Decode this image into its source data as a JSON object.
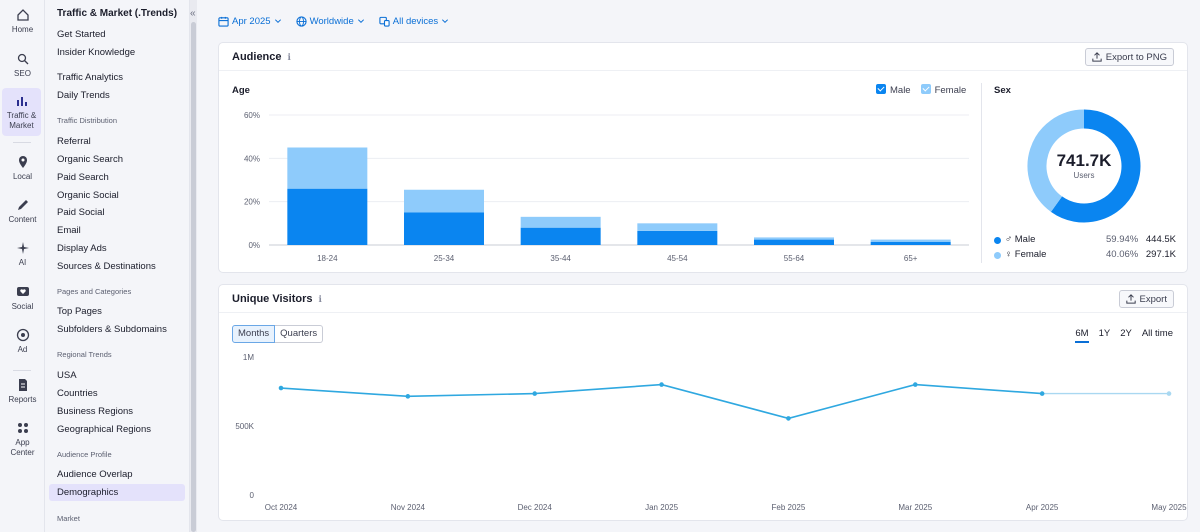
{
  "rail": {
    "items": [
      {
        "label": "Home",
        "icon": "home-icon"
      },
      {
        "label": "SEO",
        "icon": "seo-icon"
      },
      {
        "label": "Traffic &",
        "label2": "Market",
        "icon": "bar-chart-icon"
      },
      {
        "label": "Local",
        "icon": "pin-icon"
      },
      {
        "label": "Content",
        "icon": "pen-icon"
      },
      {
        "label": "AI",
        "icon": "sparkle-icon"
      },
      {
        "label": "Social",
        "icon": "heart-chat-icon"
      },
      {
        "label": "Ad",
        "icon": "target-icon"
      },
      {
        "label": "Reports",
        "icon": "document-icon"
      },
      {
        "label": "App",
        "label2": "Center",
        "icon": "grid-icon"
      }
    ]
  },
  "sidebar": {
    "title": "Traffic & Market (.Trends)",
    "items": [
      {
        "label": "Get Started"
      },
      {
        "label": "Insider Knowledge"
      },
      {
        "label": "Traffic Analytics"
      },
      {
        "label": "Daily Trends"
      },
      {
        "group": "Traffic Distribution"
      },
      {
        "label": "Referral"
      },
      {
        "label": "Organic Search"
      },
      {
        "label": "Paid Search"
      },
      {
        "label": "Organic Social"
      },
      {
        "label": "Paid Social"
      },
      {
        "label": "Email"
      },
      {
        "label": "Display Ads"
      },
      {
        "label": "Sources & Destinations"
      },
      {
        "group": "Pages and Categories"
      },
      {
        "label": "Top Pages"
      },
      {
        "label": "Subfolders & Subdomains"
      },
      {
        "group": "Regional Trends"
      },
      {
        "label": "USA"
      },
      {
        "label": "Countries"
      },
      {
        "label": "Business Regions"
      },
      {
        "label": "Geographical Regions"
      },
      {
        "group": "Audience Profile"
      },
      {
        "label": "Audience Overlap"
      },
      {
        "label": "Demographics",
        "active": true
      },
      {
        "group": "Market"
      }
    ]
  },
  "filters": {
    "date": "Apr 2025",
    "region": "Worldwide",
    "device": "All devices"
  },
  "audience": {
    "title": "Audience",
    "export_label": "Export to PNG",
    "age_title": "Age",
    "legend_male": "Male",
    "legend_female": "Female",
    "sex_title": "Sex",
    "total": "741.7K",
    "total_caption": "Users",
    "male": {
      "label": "Male",
      "pct": "59.94%",
      "count": "444.5K"
    },
    "female": {
      "label": "Female",
      "pct": "40.06%",
      "count": "297.1K"
    }
  },
  "visitors": {
    "title": "Unique Visitors",
    "export_label": "Export",
    "toggle_months": "Months",
    "toggle_quarters": "Quarters",
    "ranges": [
      "6M",
      "1Y",
      "2Y",
      "All time"
    ],
    "selected_range": "6M"
  },
  "colors": {
    "male": "#0a85f0",
    "female": "#8ecbfb",
    "line": "#2fa8e0",
    "accent": "#0a6fd6"
  },
  "chart_data": [
    {
      "type": "bar",
      "stacked": true,
      "categories": [
        "18-24",
        "25-34",
        "35-44",
        "45-54",
        "55-64",
        "65+"
      ],
      "series": [
        {
          "name": "Male",
          "values": [
            26,
            15,
            8,
            6.5,
            2.5,
            1.5
          ]
        },
        {
          "name": "Female",
          "values": [
            19,
            10.5,
            5,
            3.5,
            1,
            1
          ]
        }
      ],
      "yticks": [
        "60%",
        "40%",
        "20%",
        "0%"
      ],
      "ylim": [
        0,
        60
      ],
      "grid": true
    },
    {
      "type": "pie",
      "donut": true,
      "labels": [
        "Male",
        "Female"
      ],
      "values": [
        59.94,
        40.06
      ]
    },
    {
      "type": "line",
      "x": [
        "Oct 2024",
        "Nov 2024",
        "Dec 2024",
        "Jan 2025",
        "Feb 2025",
        "Mar 2025",
        "Apr 2025",
        "May 2025"
      ],
      "values": [
        775000,
        715000,
        735000,
        800000,
        555000,
        800000,
        735000,
        735000
      ],
      "yticks": [
        "1M",
        "500K",
        "0"
      ],
      "ylim": [
        0,
        1000000
      ],
      "grid": false
    }
  ]
}
